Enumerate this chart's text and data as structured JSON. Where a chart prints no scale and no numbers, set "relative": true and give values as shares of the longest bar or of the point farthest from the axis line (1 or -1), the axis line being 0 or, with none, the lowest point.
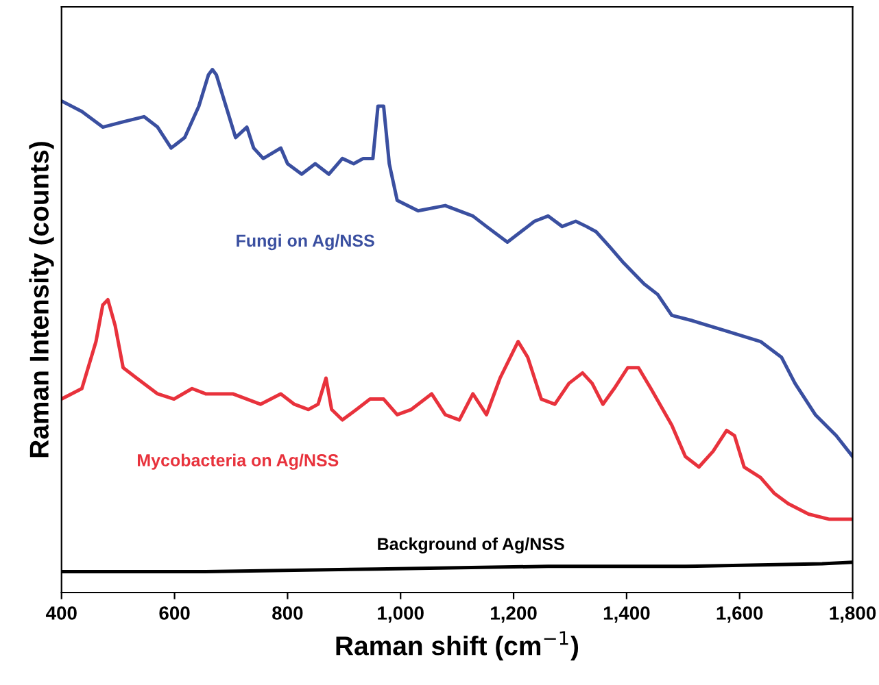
{
  "chart_data": {
    "type": "line",
    "relative": true,
    "xlabel": "Raman shift (cm$^{−1}$)",
    "ylabel": "Raman Intensity (counts)",
    "xlim": [
      400,
      1800
    ],
    "xticks": [
      400,
      600,
      800,
      {
        "value": 1000,
        "label": "1,000"
      },
      {
        "value": 1200,
        "label": "1,200"
      },
      {
        "value": 1400,
        "label": "1,400"
      },
      {
        "value": 1600,
        "label": "1,600"
      },
      {
        "value": 1800,
        "label": "1,800"
      }
    ],
    "grid": false,
    "legend": false,
    "marker": "none",
    "line_style": "solid",
    "series": [
      {
        "name": "Fungi on Ag/NSS",
        "color": "#3a4fa0",
        "x": [
          400,
          436,
          473,
          509,
          546,
          570,
          594,
          618,
          643,
          660,
          667,
          674,
          691,
          708,
          728,
          740,
          757,
          788,
          800,
          825,
          849,
          873,
          897,
          917,
          934,
          951,
          960,
          970,
          980,
          994,
          1031,
          1079,
          1128,
          1152,
          1189,
          1213,
          1237,
          1261,
          1286,
          1310,
          1329,
          1346,
          1371,
          1395,
          1431,
          1455,
          1480,
          1516,
          1577,
          1637,
          1674,
          1698,
          1734,
          1771,
          1800
        ],
        "values": [
          0.94,
          0.92,
          0.89,
          0.9,
          0.91,
          0.89,
          0.85,
          0.87,
          0.93,
          0.99,
          1.0,
          0.99,
          0.93,
          0.87,
          0.89,
          0.85,
          0.83,
          0.85,
          0.82,
          0.8,
          0.82,
          0.8,
          0.83,
          0.82,
          0.83,
          0.83,
          0.93,
          0.93,
          0.82,
          0.75,
          0.73,
          0.74,
          0.72,
          0.7,
          0.67,
          0.69,
          0.71,
          0.72,
          0.7,
          0.71,
          0.7,
          0.69,
          0.66,
          0.63,
          0.59,
          0.57,
          0.53,
          0.52,
          0.5,
          0.48,
          0.45,
          0.4,
          0.34,
          0.3,
          0.26
        ]
      },
      {
        "name": "Mycobacteria on Ag/NSS",
        "color": "#e8323c",
        "x": [
          400,
          436,
          461,
          473,
          482,
          495,
          509,
          533,
          570,
          599,
          631,
          655,
          679,
          703,
          728,
          752,
          788,
          812,
          837,
          854,
          868,
          878,
          897,
          922,
          946,
          970,
          994,
          1019,
          1055,
          1079,
          1104,
          1128,
          1152,
          1176,
          1208,
          1225,
          1249,
          1273,
          1298,
          1322,
          1339,
          1358,
          1378,
          1402,
          1421,
          1443,
          1480,
          1504,
          1528,
          1553,
          1577,
          1591,
          1608,
          1637,
          1661,
          1686,
          1722,
          1759,
          1800
        ],
        "values": [
          0.37,
          0.39,
          0.48,
          0.55,
          0.56,
          0.51,
          0.43,
          0.41,
          0.38,
          0.37,
          0.39,
          0.38,
          0.38,
          0.38,
          0.37,
          0.36,
          0.38,
          0.36,
          0.35,
          0.36,
          0.41,
          0.35,
          0.33,
          0.35,
          0.37,
          0.37,
          0.34,
          0.35,
          0.38,
          0.34,
          0.33,
          0.38,
          0.34,
          0.41,
          0.48,
          0.45,
          0.37,
          0.36,
          0.4,
          0.42,
          0.4,
          0.36,
          0.39,
          0.43,
          0.43,
          0.39,
          0.32,
          0.26,
          0.24,
          0.27,
          0.31,
          0.3,
          0.24,
          0.22,
          0.19,
          0.17,
          0.15,
          0.14,
          0.14
        ]
      },
      {
        "name": "Background of Ag/NSS",
        "color": "#000000",
        "x": [
          400,
          655,
          958,
          1261,
          1504,
          1746,
          1800
        ],
        "values": [
          0.04,
          0.04,
          0.045,
          0.05,
          0.05,
          0.055,
          0.058
        ]
      }
    ]
  }
}
